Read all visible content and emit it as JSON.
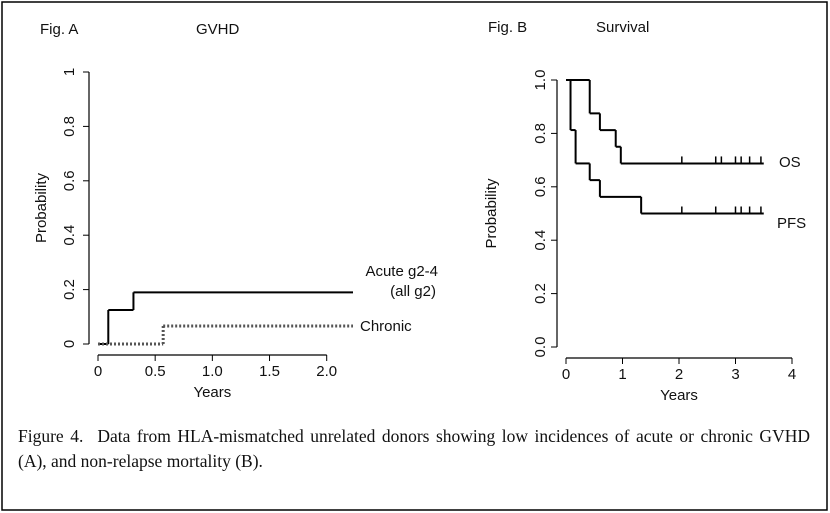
{
  "chart_data": [
    {
      "type": "step",
      "label": "Fig. A",
      "title": "GVHD",
      "xlabel": "Years",
      "ylabel": "Probability",
      "xlim": [
        0,
        2.23
      ],
      "ylim": [
        0,
        1
      ],
      "xticks": [
        0,
        0.5,
        {
          "value": 1,
          "label": "1.0"
        },
        1.5,
        {
          "value": 2,
          "label": "2.0"
        }
      ],
      "yticks": [
        0,
        0.2,
        0.4,
        0.6,
        0.8,
        1
      ],
      "series": [
        {
          "name": "Acute g2-4",
          "note": "(all g2)",
          "color": "#000000",
          "dash": "solid",
          "x_edges": [
            0,
            0.09,
            0.31,
            2.23
          ],
          "values": [
            0,
            0.125,
            0.19
          ]
        },
        {
          "name": "Chronic",
          "color": "#555555",
          "dash": "dotted",
          "x_edges": [
            0,
            0.57,
            2.23
          ],
          "values": [
            0,
            0.066
          ]
        }
      ]
    },
    {
      "type": "step",
      "label": "Fig. B",
      "title": "Survival",
      "xlabel": "Years",
      "ylabel": "Probability",
      "xlim": [
        0,
        4
      ],
      "ylim": [
        0,
        1
      ],
      "xticks": [
        0,
        1,
        2,
        3,
        4
      ],
      "yticks": [
        {
          "value": 0,
          "label": "0.0"
        },
        0.2,
        0.4,
        0.6,
        0.8,
        {
          "value": 1,
          "label": "1.0"
        }
      ],
      "series": [
        {
          "name": "OS",
          "color": "#000000",
          "dash": "solid",
          "x_edges": [
            0,
            0.42,
            0.6,
            0.88,
            0.97,
            3.5
          ],
          "values": [
            1,
            0.875,
            0.8125,
            0.75,
            0.6875
          ],
          "censored_x": [
            2.05,
            2.65,
            2.75,
            3.0,
            3.1,
            3.25,
            3.45
          ]
        },
        {
          "name": "PFS",
          "color": "#000000",
          "dash": "solid",
          "x_edges": [
            0,
            0.08,
            0.17,
            0.42,
            0.6,
            1.33,
            3.5
          ],
          "values": [
            1,
            0.8125,
            0.6875,
            0.625,
            0.5625,
            0.5
          ],
          "censored_x": [
            2.05,
            2.65,
            3.0,
            3.1,
            3.25,
            3.45
          ]
        }
      ]
    }
  ],
  "caption": {
    "label": "Figure 4.",
    "text": "Data from HLA-mismatched unrelated donors showing low incidences of acute or chronic GVHD (A), and non-relapse mortality (B)."
  }
}
